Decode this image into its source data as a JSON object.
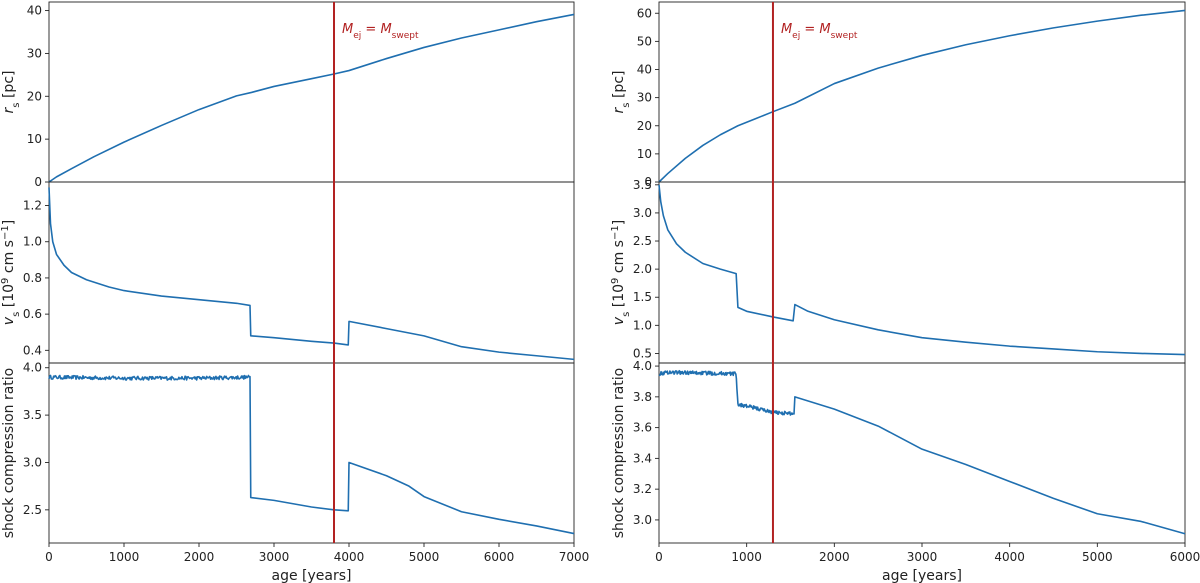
{
  "figure": {
    "colors": {
      "line": "#1f6fb0",
      "marker": "#b22222",
      "axis": "#222222"
    },
    "annotation_text": "M_ej = M_swept",
    "annotation_main_1": "M",
    "annotation_sub_1": "ej",
    "annotation_eq": " = ",
    "annotation_main_2": "M",
    "annotation_sub_2": "swept"
  },
  "chart_data": [
    {
      "type": "line",
      "panel": "left",
      "xlabel": "age [years]",
      "xlim": [
        0,
        7000
      ],
      "xticks": [
        0,
        1000,
        2000,
        3000,
        4000,
        5000,
        6000,
        7000
      ],
      "marker_x": 3800,
      "subplots": [
        {
          "ylabel": "r_s [pc]",
          "ylabel_main": "r",
          "ylabel_sub": "s",
          "ylabel_rest": " [pc]",
          "ylim": [
            0,
            42
          ],
          "yticks": [
            0,
            10,
            20,
            30,
            40
          ],
          "x": [
            0,
            100,
            300,
            600,
            1000,
            1500,
            2000,
            2500,
            2700,
            3000,
            3500,
            3800,
            4000,
            4500,
            5000,
            5500,
            6000,
            6500,
            7000
          ],
          "y": [
            0,
            1.2,
            3.1,
            5.9,
            9.3,
            13.2,
            16.9,
            20.1,
            20.9,
            22.3,
            24.1,
            25.2,
            26.0,
            28.8,
            31.4,
            33.6,
            35.5,
            37.4,
            39.1
          ]
        },
        {
          "ylabel": "v_s [10^9 cm s^-1]",
          "ylabel_main": "v",
          "ylabel_sub": "s",
          "ylabel_rest1": " [10",
          "ylabel_sup1": "9",
          "ylabel_rest2": " cm s",
          "ylabel_sup2": "−1",
          "ylabel_rest3": "]",
          "ylim": [
            0.33,
            1.33
          ],
          "yticks": [
            0.4,
            0.6,
            0.8,
            1.0,
            1.2
          ],
          "x": [
            0,
            20,
            50,
            100,
            200,
            300,
            500,
            800,
            1000,
            1500,
            2000,
            2500,
            2680,
            2690,
            3000,
            3500,
            3800,
            3990,
            4000,
            4500,
            5000,
            5500,
            6000,
            6500,
            7000
          ],
          "y": [
            1.3,
            1.1,
            1.0,
            0.93,
            0.87,
            0.83,
            0.79,
            0.75,
            0.73,
            0.7,
            0.68,
            0.66,
            0.648,
            0.48,
            0.47,
            0.45,
            0.44,
            0.43,
            0.56,
            0.52,
            0.48,
            0.42,
            0.39,
            0.37,
            0.35
          ]
        },
        {
          "ylabel": "shock compression ratio",
          "ylim": [
            2.15,
            4.05
          ],
          "yticks": [
            2.5,
            3.0,
            3.5,
            4.0
          ],
          "noisy_until": 2680,
          "noise_amp": 0.02,
          "x": [
            0,
            50,
            1000,
            2000,
            2680,
            2690,
            3000,
            3500,
            3800,
            3990,
            4000,
            4500,
            4800,
            5000,
            5500,
            6000,
            6500,
            7000
          ],
          "y": [
            3.9,
            3.9,
            3.89,
            3.89,
            3.9,
            2.63,
            2.6,
            2.53,
            2.5,
            2.49,
            3.0,
            2.86,
            2.75,
            2.64,
            2.48,
            2.4,
            2.33,
            2.25
          ]
        }
      ]
    },
    {
      "type": "line",
      "panel": "right",
      "xlabel": "age [years]",
      "xlim": [
        0,
        6000
      ],
      "xticks": [
        0,
        1000,
        2000,
        3000,
        4000,
        5000,
        6000
      ],
      "marker_x": 1300,
      "subplots": [
        {
          "ylabel": "r_s [pc]",
          "ylabel_main": "r",
          "ylabel_sub": "s",
          "ylabel_rest": " [pc]",
          "ylim": [
            0,
            64
          ],
          "yticks": [
            0,
            10,
            20,
            30,
            40,
            50,
            60
          ],
          "x": [
            0,
            100,
            300,
            500,
            700,
            900,
            1100,
            1300,
            1550,
            2000,
            2500,
            3000,
            3500,
            4000,
            4500,
            5000,
            5500,
            6000
          ],
          "y": [
            0,
            3.0,
            8.4,
            13.0,
            16.8,
            20.0,
            22.5,
            25.0,
            28.0,
            35.0,
            40.5,
            45.0,
            48.8,
            52.0,
            54.8,
            57.2,
            59.3,
            61.0
          ]
        },
        {
          "ylabel": "v_s [10^9 cm s^-1]",
          "ylabel_main": "v",
          "ylabel_sub": "s",
          "ylabel_rest1": " [10",
          "ylabel_sup1": "9",
          "ylabel_rest2": " cm s",
          "ylabel_sup2": "−1",
          "ylabel_rest3": "]",
          "ylim": [
            0.33,
            3.55
          ],
          "yticks": [
            0.5,
            1.0,
            1.5,
            2.0,
            2.5,
            3.0,
            3.5
          ],
          "x": [
            0,
            20,
            50,
            100,
            200,
            300,
            500,
            700,
            880,
            900,
            1000,
            1300,
            1530,
            1550,
            1700,
            2000,
            2500,
            3000,
            3500,
            4000,
            4500,
            5000,
            5500,
            6000
          ],
          "y": [
            3.5,
            3.2,
            2.95,
            2.7,
            2.45,
            2.3,
            2.1,
            2.0,
            1.92,
            1.32,
            1.25,
            1.15,
            1.08,
            1.37,
            1.25,
            1.1,
            0.92,
            0.78,
            0.7,
            0.63,
            0.58,
            0.53,
            0.5,
            0.48
          ]
        },
        {
          "ylabel": "shock compression ratio",
          "ylim": [
            2.85,
            4.02
          ],
          "yticks": [
            3.0,
            3.2,
            3.4,
            3.6,
            3.8,
            4.0
          ],
          "noisy_until": 1540,
          "noise_amp": 0.012,
          "x": [
            0,
            100,
            880,
            900,
            1000,
            1300,
            1540,
            1550,
            2000,
            2500,
            3000,
            3500,
            4000,
            4500,
            5000,
            5500,
            6000
          ],
          "y": [
            3.95,
            3.96,
            3.95,
            3.75,
            3.74,
            3.7,
            3.69,
            3.8,
            3.72,
            3.61,
            3.46,
            3.36,
            3.25,
            3.14,
            3.04,
            2.99,
            2.91
          ]
        }
      ]
    }
  ]
}
